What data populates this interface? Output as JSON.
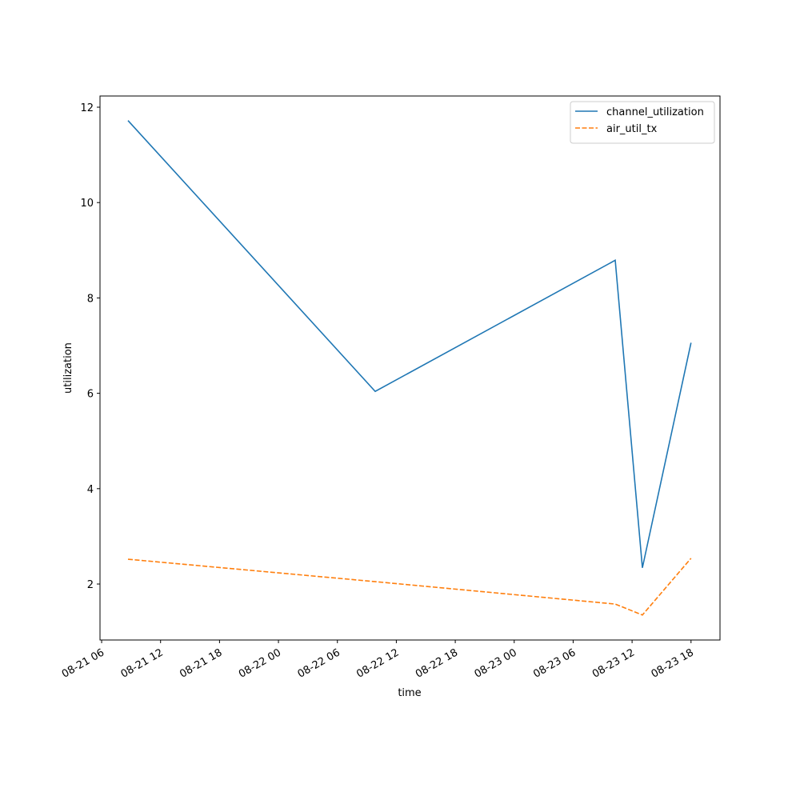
{
  "chart_data": {
    "type": "line",
    "x_label": "time",
    "y_label": "utilization",
    "x": [
      "08-21 08:41",
      "08-22 09:51",
      "08-23 10:17",
      "08-23 13:03",
      "08-23 18:00"
    ],
    "series": [
      {
        "name": "channel_utilization",
        "color": "#1f77b4",
        "dash": "solid",
        "values": [
          11.72,
          6.04,
          8.79,
          2.34,
          7.06
        ]
      },
      {
        "name": "air_util_tx",
        "color": "#ff7f0e",
        "dash": "dashed",
        "values": [
          2.52,
          2.05,
          1.58,
          1.35,
          2.54
        ]
      }
    ],
    "xlim": [
      "08-21 05:50",
      "08-23 20:57"
    ],
    "xticks": [
      "08-21 06",
      "08-21 12",
      "08-21 18",
      "08-22 00",
      "08-22 06",
      "08-22 12",
      "08-22 18",
      "08-23 00",
      "08-23 06",
      "08-23 12",
      "08-23 18"
    ],
    "ylim": [
      0.826,
      12.235
    ],
    "yticks": [
      2,
      4,
      6,
      8,
      10,
      12
    ],
    "grid": false,
    "legend": "upper right"
  }
}
